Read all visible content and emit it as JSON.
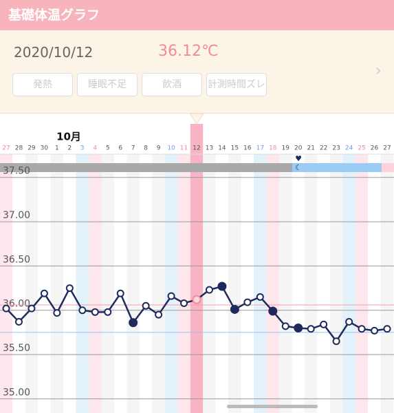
{
  "header": {
    "title": "基礎体温グラフ"
  },
  "info": {
    "date": "2020/10/12",
    "temperature": "36.12℃",
    "tags": [
      "発熱",
      "睡眠不足",
      "飲酒",
      "計測時間ズレ"
    ]
  },
  "chart_data": {
    "type": "line",
    "month_label": "10月",
    "categories": [
      "27",
      "28",
      "29",
      "30",
      "1",
      "2",
      "3",
      "4",
      "5",
      "6",
      "7",
      "8",
      "9",
      "10",
      "11",
      "12",
      "13",
      "14",
      "15",
      "16",
      "17",
      "18",
      "19",
      "20",
      "21",
      "22",
      "23",
      "24",
      "25",
      "26",
      "27"
    ],
    "day_kinds": [
      "sun",
      "weekday",
      "weekday",
      "weekday",
      "weekday",
      "weekday",
      "sat",
      "sun",
      "weekday",
      "weekday",
      "weekday",
      "weekday",
      "weekday",
      "sat",
      "sun",
      "selected",
      "weekday",
      "weekday",
      "weekday",
      "weekday",
      "sat",
      "sun",
      "weekday",
      "weekday",
      "weekday",
      "weekday",
      "weekday",
      "sat",
      "sun",
      "weekday",
      "weekday"
    ],
    "series": [
      {
        "color": "#1f2a5c",
        "values": [
          36.02,
          35.87,
          36.02,
          36.19,
          35.97,
          36.25,
          36.0,
          35.98,
          35.98,
          36.19,
          35.86,
          36.05,
          35.95,
          36.16,
          36.08,
          36.12,
          36.23,
          36.27,
          36.01,
          36.09,
          36.15,
          35.99,
          35.82,
          35.8,
          35.79,
          35.84,
          35.65,
          35.87,
          35.79,
          35.77,
          35.79
        ],
        "markers": [
          "open",
          "open",
          "open",
          "open",
          "open",
          "open",
          "open",
          "open",
          "open",
          "open",
          "filled",
          "open",
          "open",
          "open",
          "open",
          "selected",
          "open",
          "filled",
          "filled",
          "open",
          "open",
          "filled",
          "open",
          "filled",
          "open",
          "open",
          "open",
          "open",
          "open",
          "open",
          "open"
        ]
      }
    ],
    "reference_lines": [
      {
        "value": 36.06,
        "color": "#f2a0a8"
      },
      {
        "value": 35.75,
        "color": "#9cc0f0"
      }
    ],
    "ylim": [
      34.84,
      37.7
    ],
    "yticks": [
      {
        "value": 35.0,
        "label": "35.00"
      },
      {
        "value": 35.5,
        "label": "35.50"
      },
      {
        "value": 36.0,
        "label": "36.00"
      },
      {
        "value": 36.5,
        "label": "36.50"
      },
      {
        "value": 37.0,
        "label": "37.00"
      },
      {
        "value": 37.5,
        "label": "37.50"
      }
    ],
    "grid": true
  }
}
